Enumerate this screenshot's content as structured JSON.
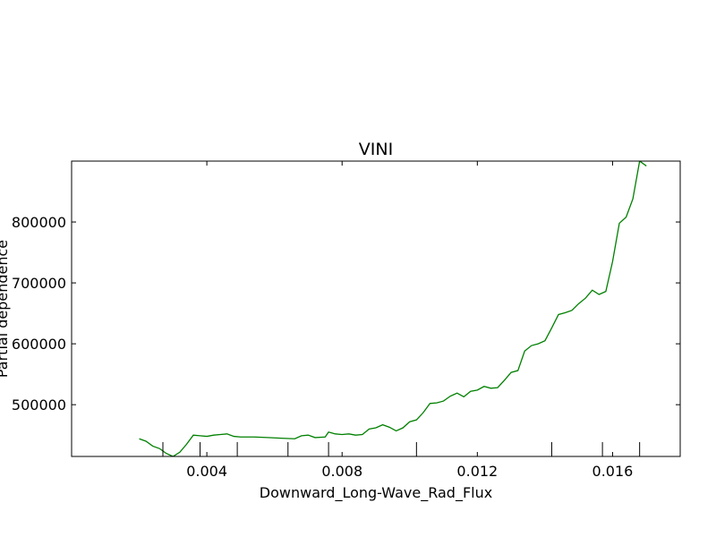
{
  "chart_data": {
    "type": "line",
    "title": "VINI",
    "xlabel": "Downward_Long-Wave_Rad_Flux",
    "ylabel": "Partial dependence",
    "xlim": [
      0.0,
      0.018
    ],
    "ylim": [
      415000,
      900000
    ],
    "xticks": [
      0.004,
      0.008,
      0.012,
      0.016
    ],
    "xtick_labels": [
      "0.004",
      "0.008",
      "0.012",
      "0.016"
    ],
    "yticks": [
      500000,
      600000,
      700000,
      800000
    ],
    "ytick_labels": [
      "500000",
      "600000",
      "700000",
      "800000"
    ],
    "rug_x": [
      0.0027,
      0.0038,
      0.0049,
      0.0064,
      0.0076,
      0.0102,
      0.0142,
      0.0157,
      0.0168
    ],
    "grid": false,
    "series": [
      {
        "color": "#008000",
        "x": [
          0.002,
          0.0022,
          0.0024,
          0.0026,
          0.0028,
          0.003,
          0.0032,
          0.0034,
          0.0036,
          0.0038,
          0.004,
          0.0042,
          0.0044,
          0.0046,
          0.0048,
          0.005,
          0.0054,
          0.0058,
          0.0062,
          0.0066,
          0.0068,
          0.007,
          0.0072,
          0.0075,
          0.0076,
          0.0078,
          0.008,
          0.0082,
          0.0084,
          0.0086,
          0.0088,
          0.009,
          0.0092,
          0.0094,
          0.0096,
          0.0098,
          0.01,
          0.0102,
          0.0104,
          0.0106,
          0.0108,
          0.011,
          0.0112,
          0.0114,
          0.0116,
          0.0118,
          0.012,
          0.0122,
          0.0124,
          0.0126,
          0.0128,
          0.013,
          0.0132,
          0.0134,
          0.0136,
          0.0138,
          0.014,
          0.0142,
          0.0144,
          0.0146,
          0.0148,
          0.015,
          0.0152,
          0.0154,
          0.0156,
          0.0158,
          0.016,
          0.0162,
          0.0164,
          0.0166,
          0.0168,
          0.017
        ],
        "y": [
          444000,
          440000,
          432000,
          428000,
          420000,
          415000,
          422000,
          435000,
          450000,
          449000,
          448000,
          450000,
          451000,
          452000,
          448000,
          447000,
          447000,
          446000,
          445000,
          444000,
          449000,
          450000,
          446000,
          447000,
          455000,
          452000,
          451000,
          452000,
          450000,
          451000,
          460000,
          462000,
          467000,
          463000,
          457000,
          462000,
          472000,
          475000,
          487000,
          502000,
          503000,
          506000,
          514000,
          519000,
          513000,
          522000,
          524000,
          530000,
          527000,
          528000,
          540000,
          553000,
          556000,
          588000,
          597000,
          600000,
          605000,
          626000,
          648000,
          651000,
          655000,
          666000,
          675000,
          688000,
          681000,
          686000,
          735000,
          798000,
          808000,
          838000,
          900000,
          892000
        ]
      }
    ]
  }
}
